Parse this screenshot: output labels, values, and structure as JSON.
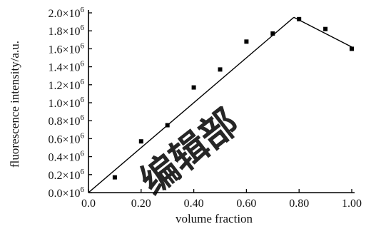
{
  "chart_data": {
    "type": "scatter",
    "title": "",
    "xlabel": "volume fraction",
    "ylabel": "fluorescence intensity/a.u.",
    "xlim": [
      0.0,
      1.0
    ],
    "ylim": [
      0.0,
      2000000
    ],
    "grid": false,
    "legend": "none",
    "x_ticks": [
      {
        "value": 0.0,
        "label": "0.0"
      },
      {
        "value": 0.2,
        "label": "0.20"
      },
      {
        "value": 0.4,
        "label": "0.40"
      },
      {
        "value": 0.6,
        "label": "0.60"
      },
      {
        "value": 0.8,
        "label": "0.80"
      },
      {
        "value": 1.0,
        "label": "1.00"
      }
    ],
    "y_ticks": [
      {
        "value": 0,
        "mantissa": "0.0"
      },
      {
        "value": 200000,
        "mantissa": "0.2"
      },
      {
        "value": 400000,
        "mantissa": "0.4"
      },
      {
        "value": 600000,
        "mantissa": "0.6"
      },
      {
        "value": 800000,
        "mantissa": "0.8"
      },
      {
        "value": 1000000,
        "mantissa": "1.0"
      },
      {
        "value": 1200000,
        "mantissa": "1.2"
      },
      {
        "value": 1400000,
        "mantissa": "1.4"
      },
      {
        "value": 1600000,
        "mantissa": "1.6"
      },
      {
        "value": 1800000,
        "mantissa": "1.8"
      },
      {
        "value": 2000000,
        "mantissa": "2.0"
      }
    ],
    "y_tick_multiplier": "×10",
    "y_tick_exponent": "6",
    "points": [
      {
        "x": 0.1,
        "y": 170000
      },
      {
        "x": 0.2,
        "y": 570000
      },
      {
        "x": 0.3,
        "y": 750000
      },
      {
        "x": 0.4,
        "y": 1170000
      },
      {
        "x": 0.5,
        "y": 1370000
      },
      {
        "x": 0.6,
        "y": 1680000
      },
      {
        "x": 0.7,
        "y": 1770000
      },
      {
        "x": 0.8,
        "y": 1930000
      },
      {
        "x": 0.9,
        "y": 1820000
      },
      {
        "x": 1.0,
        "y": 1600000
      }
    ],
    "fit_lines": [
      {
        "x": [
          0.0,
          0.78
        ],
        "y": [
          0,
          1950000
        ]
      },
      {
        "x": [
          0.78,
          1.0
        ],
        "y": [
          1950000,
          1620000
        ]
      }
    ],
    "marker_color": "#000000",
    "line_color": "#000000"
  },
  "watermark": {
    "text": "编辑部",
    "color": "#000000",
    "opacity": 0.85
  }
}
